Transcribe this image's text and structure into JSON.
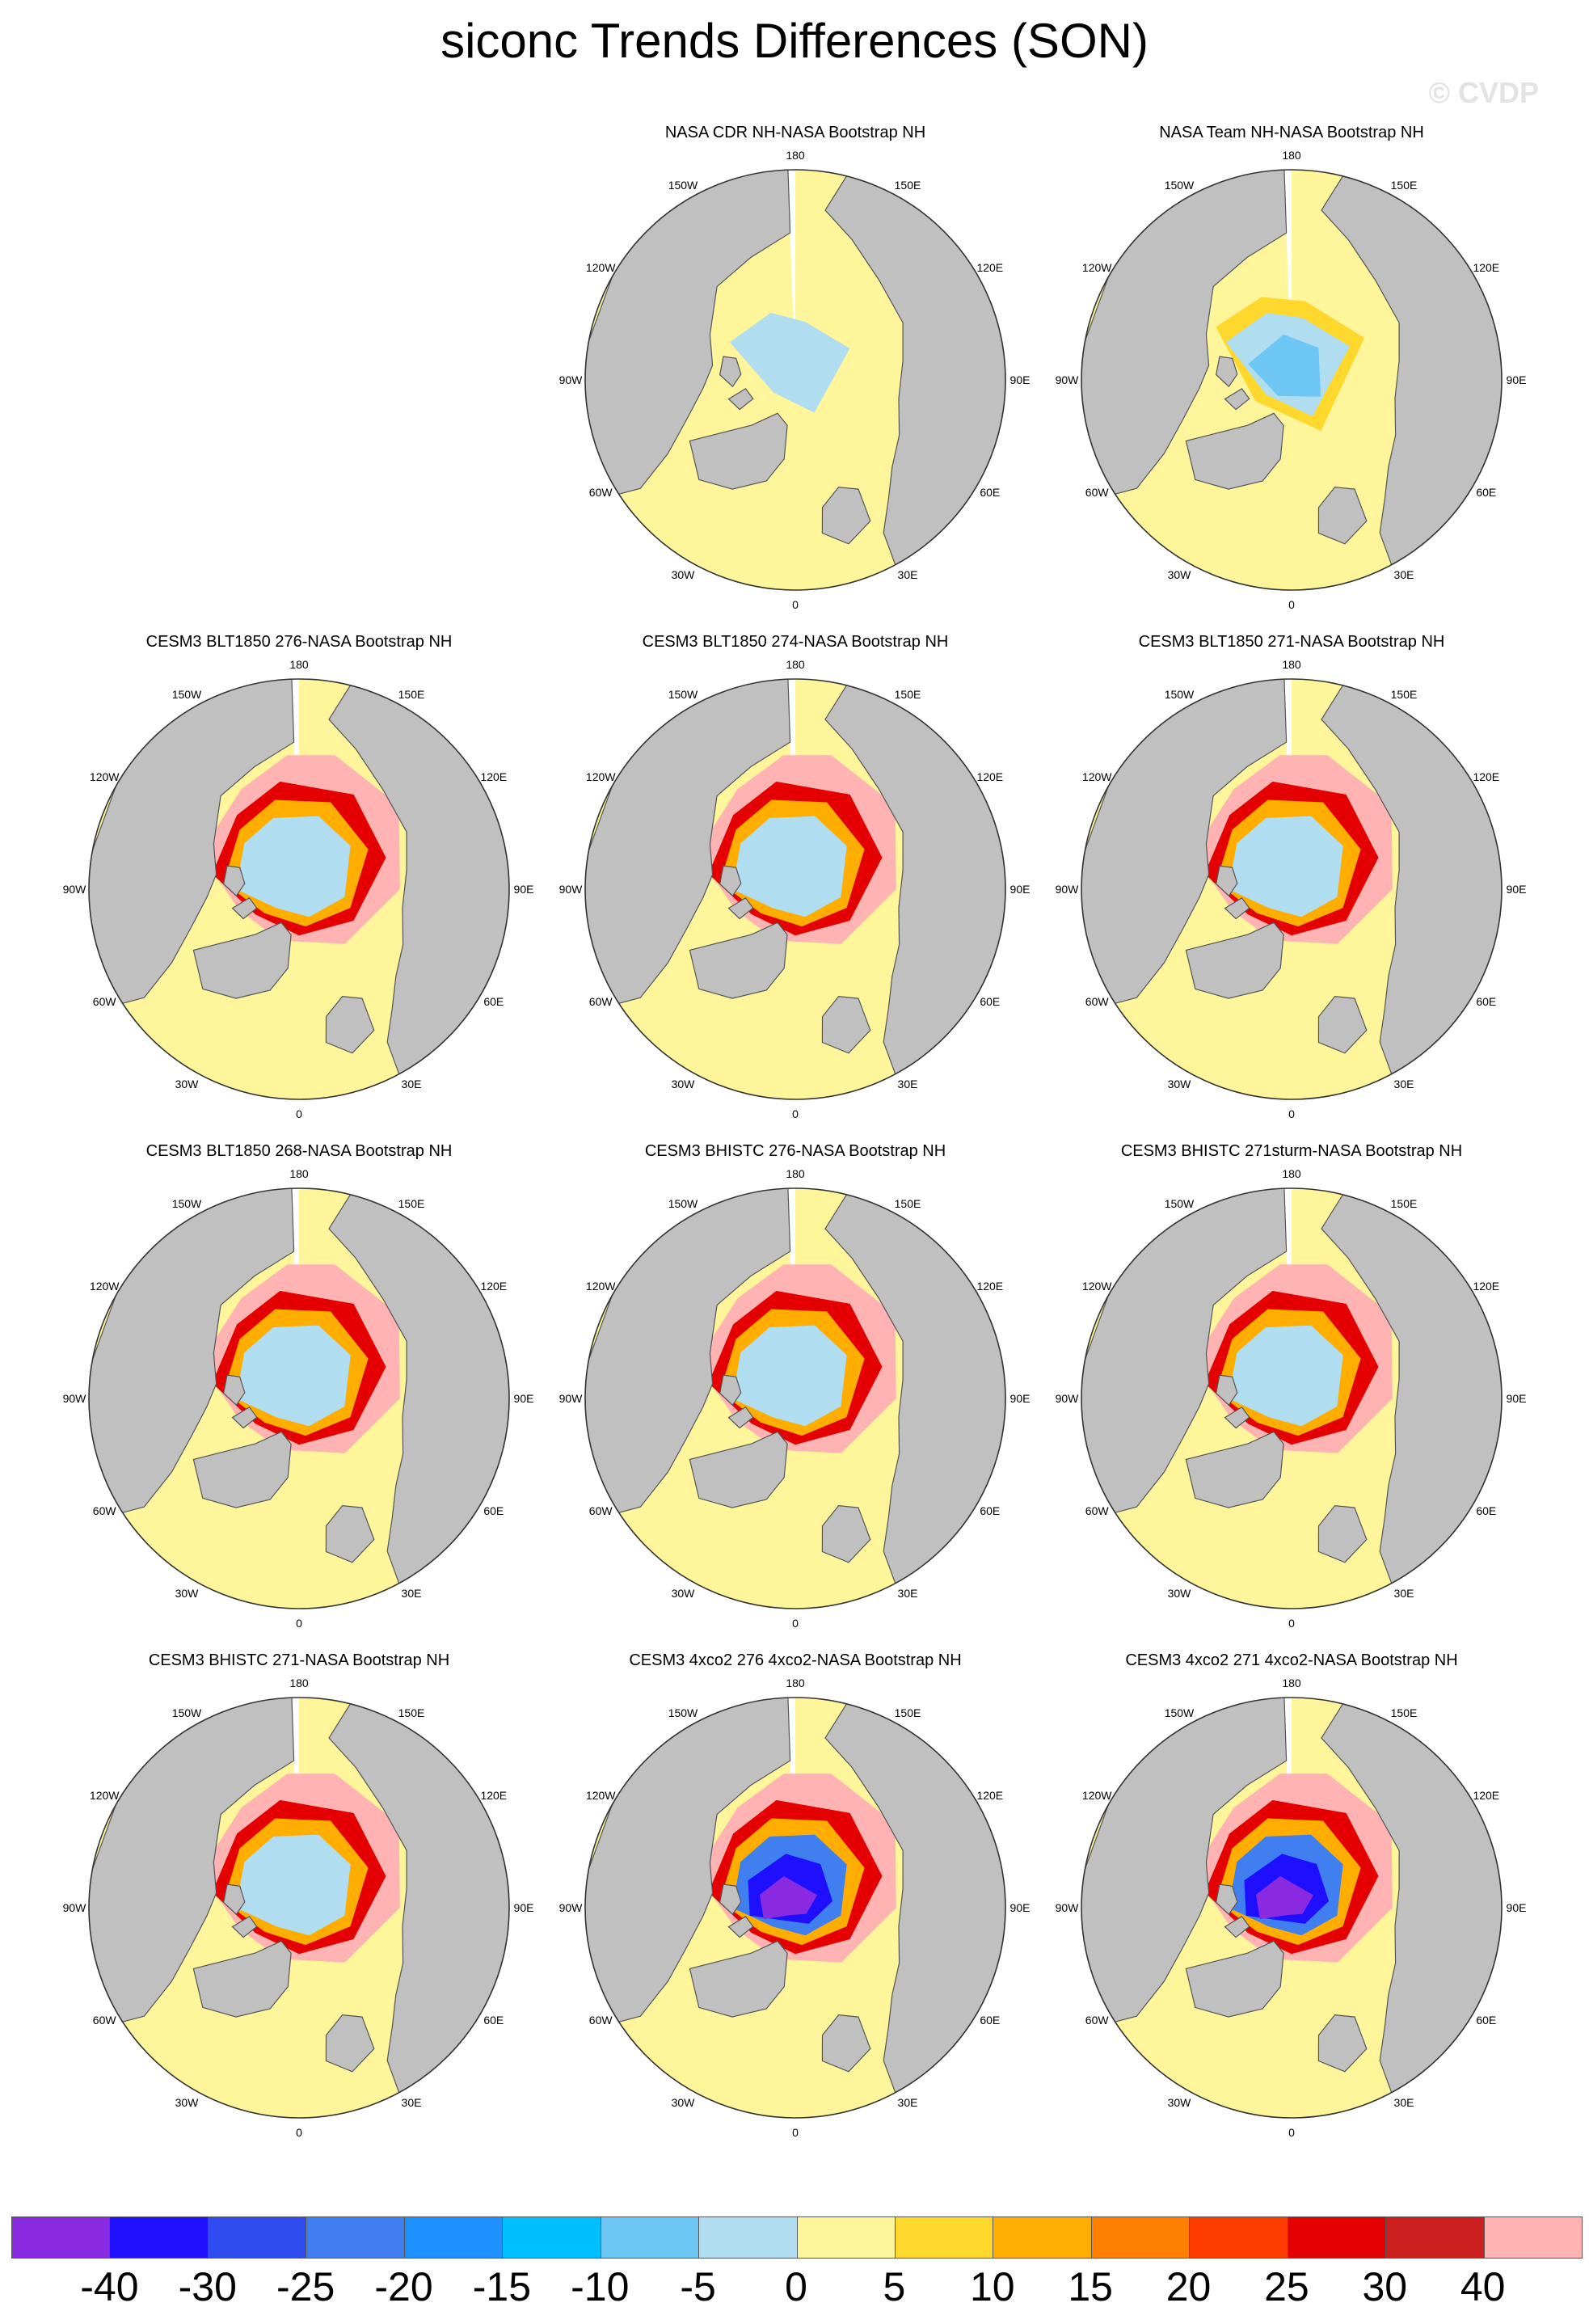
{
  "title": "siconc Trends Differences (SON)",
  "watermark": "© CVDP",
  "lon_labels": [
    "180",
    "150E",
    "120E",
    "90E",
    "60E",
    "30E",
    "0",
    "30W",
    "60W",
    "90W",
    "120W",
    "150W"
  ],
  "panels": [
    {
      "title": "NASA CDR NH-NASA Bootstrap NH",
      "col": 1,
      "row": 0,
      "style": "cdr"
    },
    {
      "title": "NASA Team NH-NASA Bootstrap NH",
      "col": 2,
      "row": 0,
      "style": "team"
    },
    {
      "title": "CESM3 BLT1850 276-NASA Bootstrap NH",
      "col": 0,
      "row": 1,
      "style": "model"
    },
    {
      "title": "CESM3 BLT1850 274-NASA Bootstrap NH",
      "col": 1,
      "row": 1,
      "style": "model"
    },
    {
      "title": "CESM3 BLT1850 271-NASA Bootstrap NH",
      "col": 2,
      "row": 1,
      "style": "model"
    },
    {
      "title": "CESM3 BLT1850 268-NASA Bootstrap NH",
      "col": 0,
      "row": 2,
      "style": "model"
    },
    {
      "title": "CESM3 BHISTC 276-NASA Bootstrap NH",
      "col": 1,
      "row": 2,
      "style": "model"
    },
    {
      "title": "CESM3 BHISTC 271sturm-NASA Bootstrap NH",
      "col": 2,
      "row": 2,
      "style": "model"
    },
    {
      "title": "CESM3 BHISTC 271-NASA Bootstrap NH",
      "col": 0,
      "row": 3,
      "style": "model"
    },
    {
      "title": "CESM3 4xco2 276 4xco2-NASA Bootstrap NH",
      "col": 1,
      "row": 3,
      "style": "co2"
    },
    {
      "title": "CESM3 4xco2 271 4xco2-NASA Bootstrap NH",
      "col": 2,
      "row": 3,
      "style": "co2"
    }
  ],
  "colorbar": {
    "colors": [
      "#8a2be2",
      "#1e0fff",
      "#2f4cf0",
      "#3f7ff0",
      "#1e90ff",
      "#00bfff",
      "#6ec6f5",
      "#b0ddf0",
      "#fff59a",
      "#ffd82e",
      "#ffae00",
      "#ff7f00",
      "#ff3c00",
      "#e40000",
      "#cc1f1f",
      "#ffb3b3"
    ],
    "labels": [
      "-40",
      "-30",
      "-25",
      "-20",
      "-15",
      "-10",
      "-5",
      "0",
      "5",
      "10",
      "15",
      "20",
      "25",
      "30",
      "40"
    ]
  },
  "map_colors": {
    "land": "#c0c0c0",
    "ocean_zero": "#fff59a",
    "missing": "#ffffff",
    "coast": "#555555"
  }
}
